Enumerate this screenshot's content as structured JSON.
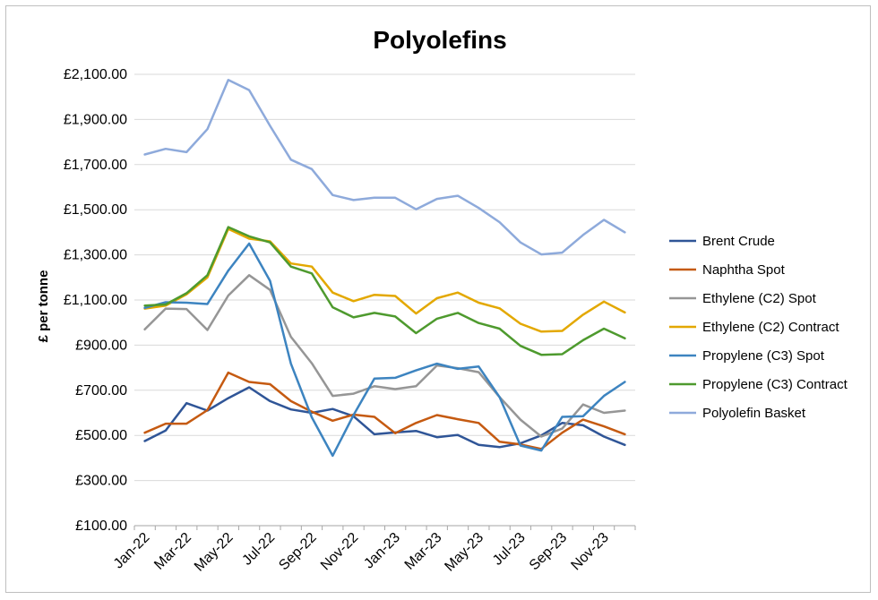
{
  "chart_data": {
    "type": "line",
    "title": "Polyolefins",
    "ylabel": "£ per tonne",
    "xlabel": "",
    "ylim": [
      100,
      2100
    ],
    "yticks": [
      100,
      300,
      500,
      700,
      900,
      1100,
      1300,
      1500,
      1700,
      1900,
      2100
    ],
    "ytick_labels": [
      "£100.00",
      "£300.00",
      "£500.00",
      "£700.00",
      "£900.00",
      "£1,100.00",
      "£1,300.00",
      "£1,500.00",
      "£1,700.00",
      "£1,900.00",
      "£2,100.00"
    ],
    "categories": [
      "Jan-22",
      "Feb-22",
      "Mar-22",
      "Apr-22",
      "May-22",
      "Jun-22",
      "Jul-22",
      "Aug-22",
      "Sep-22",
      "Oct-22",
      "Nov-22",
      "Dec-22",
      "Jan-23",
      "Feb-23",
      "Mar-23",
      "Apr-23",
      "May-23",
      "Jun-23",
      "Jul-23",
      "Aug-23",
      "Sep-23",
      "Oct-23",
      "Nov-23",
      "Dec-23"
    ],
    "xtick_labels": [
      "Jan-22",
      "",
      "Mar-22",
      "",
      "May-22",
      "",
      "Jul-22",
      "",
      "Sep-22",
      "",
      "Nov-22",
      "",
      "Jan-23",
      "",
      "Mar-23",
      "",
      "May-23",
      "",
      "Jul-23",
      "",
      "Sep-23",
      "",
      "Nov-23",
      ""
    ],
    "grid": true,
    "legend_position": "right",
    "series": [
      {
        "name": "Brent Crude",
        "color": "#2f5597",
        "values": [
          475,
          522,
          643,
          610,
          665,
          713,
          652,
          615,
          600,
          617,
          585,
          505,
          513,
          520,
          492,
          502,
          458,
          448,
          465,
          500,
          555,
          545,
          495,
          458
        ]
      },
      {
        "name": "Naphtha Spot",
        "color": "#c55a11",
        "values": [
          512,
          552,
          552,
          612,
          778,
          737,
          727,
          652,
          605,
          565,
          592,
          582,
          510,
          555,
          590,
          572,
          555,
          472,
          460,
          440,
          512,
          570,
          540,
          505
        ]
      },
      {
        "name": "Ethylene (C2) Spot",
        "color": "#969696",
        "values": [
          970,
          1062,
          1060,
          967,
          1120,
          1210,
          1145,
          937,
          820,
          675,
          685,
          718,
          705,
          718,
          810,
          798,
          780,
          670,
          570,
          495,
          530,
          637,
          600,
          610
        ]
      },
      {
        "name": "Ethylene (C2) Contract",
        "color": "#e3a800",
        "values": [
          1062,
          1075,
          1125,
          1200,
          1415,
          1372,
          1360,
          1262,
          1248,
          1133,
          1095,
          1123,
          1118,
          1040,
          1108,
          1133,
          1088,
          1063,
          995,
          960,
          963,
          1035,
          1093,
          1045
        ]
      },
      {
        "name": "Propylene (C3) Spot",
        "color": "#3d84c0",
        "values": [
          1065,
          1090,
          1088,
          1082,
          1230,
          1350,
          1185,
          818,
          580,
          410,
          590,
          752,
          755,
          788,
          818,
          795,
          805,
          670,
          455,
          433,
          582,
          585,
          675,
          737
        ]
      },
      {
        "name": "Propylene (C3) Contract",
        "color": "#4e9a2e",
        "values": [
          1075,
          1080,
          1130,
          1210,
          1423,
          1382,
          1355,
          1248,
          1218,
          1068,
          1023,
          1043,
          1027,
          953,
          1017,
          1043,
          998,
          973,
          897,
          857,
          860,
          922,
          973,
          930
        ]
      },
      {
        "name": "Polyolefin Basket",
        "color": "#8eaadb",
        "values": [
          1745,
          1770,
          1755,
          1857,
          2075,
          2030,
          1872,
          1722,
          1680,
          1565,
          1543,
          1553,
          1553,
          1502,
          1548,
          1562,
          1508,
          1445,
          1355,
          1302,
          1310,
          1388,
          1455,
          1400
        ]
      }
    ]
  }
}
